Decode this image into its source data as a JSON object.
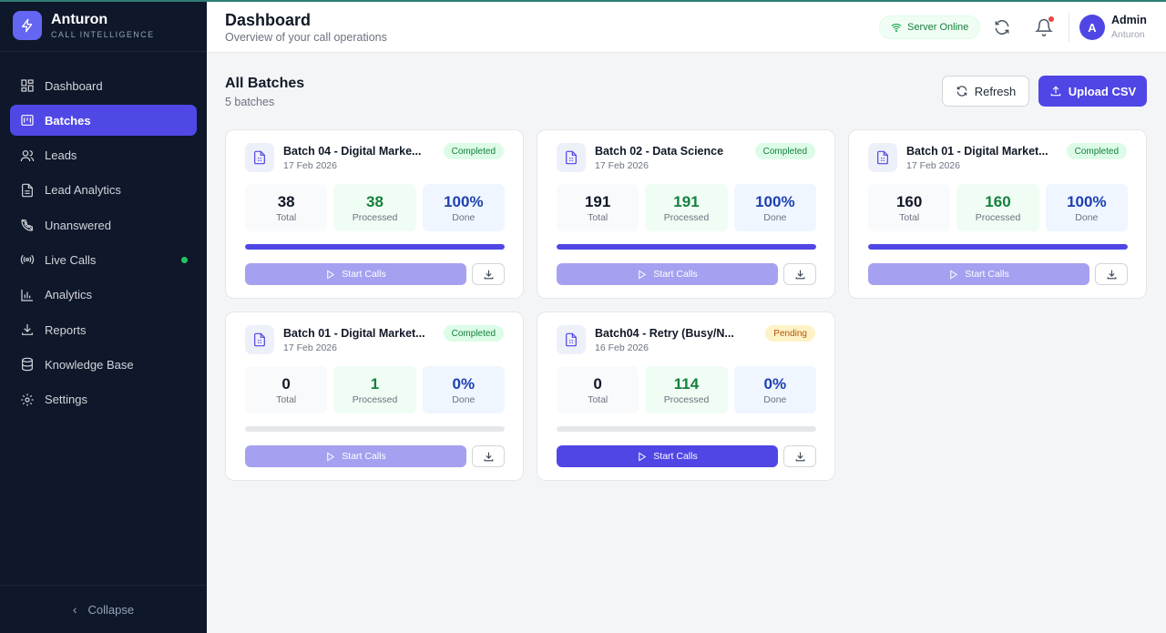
{
  "brand": {
    "name": "Anturon",
    "subtitle": "CALL INTELLIGENCE",
    "icon": "bolt-icon",
    "color": "#6366f1"
  },
  "sidebar": {
    "items": [
      {
        "label": "Dashboard",
        "icon": "dashboard-icon",
        "active": false
      },
      {
        "label": "Batches",
        "icon": "batches-icon",
        "active": true
      },
      {
        "label": "Leads",
        "icon": "users-icon",
        "active": false
      },
      {
        "label": "Lead Analytics",
        "icon": "document-icon",
        "active": false
      },
      {
        "label": "Unanswered",
        "icon": "phone-off-icon",
        "active": false
      },
      {
        "label": "Live Calls",
        "icon": "broadcast-icon",
        "active": false,
        "live": true
      },
      {
        "label": "Analytics",
        "icon": "bar-chart-icon",
        "active": false
      },
      {
        "label": "Reports",
        "icon": "download-icon",
        "active": false
      },
      {
        "label": "Knowledge Base",
        "icon": "database-icon",
        "active": false
      },
      {
        "label": "Settings",
        "icon": "gear-icon",
        "active": false
      }
    ],
    "collapse_label": "Collapse"
  },
  "header": {
    "title": "Dashboard",
    "subtitle": "Overview of your call operations",
    "server_status": "Server Online",
    "user": {
      "initial": "A",
      "name": "Admin",
      "org": "Anturon"
    }
  },
  "main": {
    "title": "All Batches",
    "count_label": "5 batches",
    "refresh_label": "Refresh",
    "upload_label": "Upload CSV"
  },
  "batches": [
    {
      "title": "Batch 04 - Digital Marke...",
      "date": "17 Feb 2026",
      "status": "Completed",
      "total": "38",
      "total_label": "Total",
      "processed": "38",
      "processed_label": "Processed",
      "done": "100%",
      "done_label": "Done",
      "progress": 1.0,
      "start_label": "Start Calls",
      "start_enabled": false
    },
    {
      "title": "Batch 02 - Data Science",
      "date": "17 Feb 2026",
      "status": "Completed",
      "total": "191",
      "total_label": "Total",
      "processed": "191",
      "processed_label": "Processed",
      "done": "100%",
      "done_label": "Done",
      "progress": 1.0,
      "start_label": "Start Calls",
      "start_enabled": false
    },
    {
      "title": "Batch 01 - Digital Market...",
      "date": "17 Feb 2026",
      "status": "Completed",
      "total": "160",
      "total_label": "Total",
      "processed": "160",
      "processed_label": "Processed",
      "done": "100%",
      "done_label": "Done",
      "progress": 1.0,
      "start_label": "Start Calls",
      "start_enabled": false
    },
    {
      "title": "Batch 01 - Digital Market...",
      "date": "17 Feb 2026",
      "status": "Completed",
      "total": "0",
      "total_label": "Total",
      "processed": "1",
      "processed_label": "Processed",
      "done": "0%",
      "done_label": "Done",
      "progress": 0.0,
      "start_label": "Start Calls",
      "start_enabled": false
    },
    {
      "title": "Batch04 - Retry (Busy/N...",
      "date": "16 Feb 2026",
      "status": "Pending",
      "total": "0",
      "total_label": "Total",
      "processed": "114",
      "processed_label": "Processed",
      "done": "0%",
      "done_label": "Done",
      "progress": 0.0,
      "start_label": "Start Calls",
      "start_enabled": true
    }
  ],
  "colors": {
    "accent": "#4f46e5",
    "sidebar_bg": "#0f172a",
    "success": "#15803d",
    "pending": "#b45309"
  }
}
